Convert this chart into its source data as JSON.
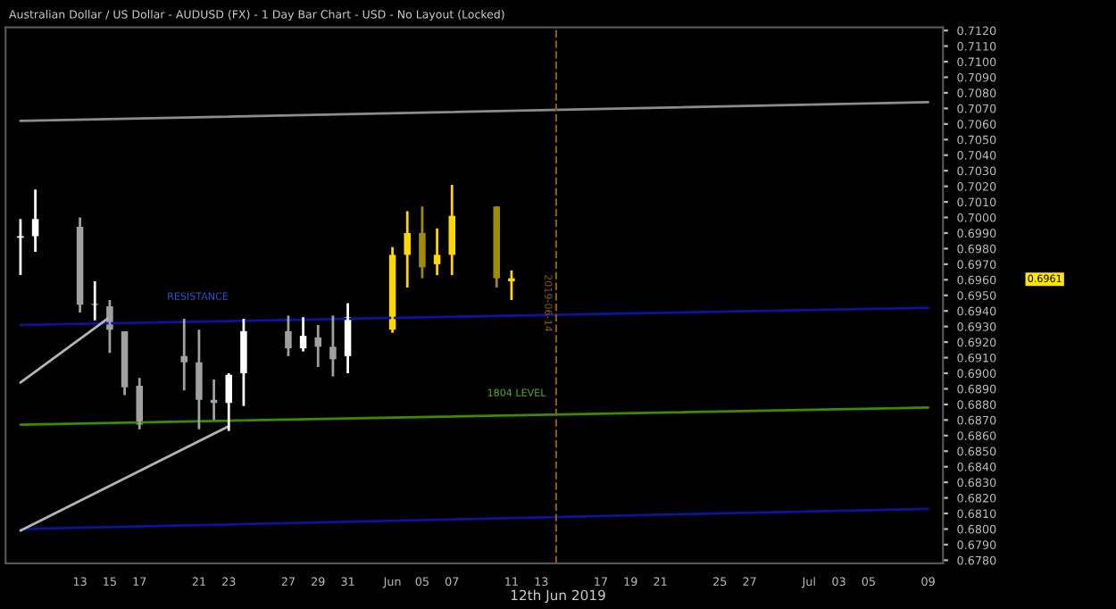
{
  "chart_data": {
    "type": "candlestick",
    "title": "Australian Dollar / US Dollar - AUDUSD (FX) - 1 Day Bar Chart - USD - No Layout (Locked)",
    "x": [
      "2019-05-09",
      "2019-05-10",
      "2019-05-13",
      "2019-05-14",
      "2019-05-15",
      "2019-05-16",
      "2019-05-17",
      "2019-05-20",
      "2019-05-21",
      "2019-05-22",
      "2019-05-23",
      "2019-05-24",
      "2019-05-27",
      "2019-05-28",
      "2019-05-29",
      "2019-05-30",
      "2019-05-31",
      "2019-06-03",
      "2019-06-04",
      "2019-06-05",
      "2019-06-06",
      "2019-06-07",
      "2019-06-10",
      "2019-06-11"
    ],
    "ohlc": [
      [
        0.6987,
        0.6999,
        0.6963,
        0.6988
      ],
      [
        0.6988,
        0.7018,
        0.6978,
        0.6999
      ],
      [
        0.6994,
        0.7,
        0.6939,
        0.6944
      ],
      [
        0.6944,
        0.6959,
        0.6934,
        0.6944
      ],
      [
        0.6943,
        0.6947,
        0.6913,
        0.6928
      ],
      [
        0.6927,
        0.6927,
        0.6886,
        0.6891
      ],
      [
        0.6892,
        0.6897,
        0.6864,
        0.6867
      ],
      [
        0.6911,
        0.6935,
        0.6889,
        0.6907
      ],
      [
        0.6907,
        0.6928,
        0.6864,
        0.6883
      ],
      [
        0.6883,
        0.6896,
        0.687,
        0.6881
      ],
      [
        0.6881,
        0.69,
        0.6863,
        0.6899
      ],
      [
        0.69,
        0.6935,
        0.6879,
        0.6927
      ],
      [
        0.6927,
        0.6937,
        0.6911,
        0.6916
      ],
      [
        0.6916,
        0.6936,
        0.6914,
        0.6924
      ],
      [
        0.6923,
        0.6931,
        0.6904,
        0.6917
      ],
      [
        0.6917,
        0.6937,
        0.6898,
        0.6909
      ],
      [
        0.6911,
        0.6945,
        0.69,
        0.6936
      ],
      [
        0.6928,
        0.6981,
        0.6926,
        0.6976
      ],
      [
        0.6976,
        0.7004,
        0.6955,
        0.699
      ],
      [
        0.699,
        0.7007,
        0.6961,
        0.6968
      ],
      [
        0.697,
        0.6993,
        0.6963,
        0.6976
      ],
      [
        0.6976,
        0.7021,
        0.6963,
        0.7001
      ],
      [
        0.7007,
        0.7007,
        0.6955,
        0.6961
      ],
      [
        0.6959,
        0.6966,
        0.6947,
        0.6961
      ]
    ],
    "colors": [
      "#ffffff",
      "#ffffff",
      "#a0a0a0",
      "#ffffff",
      "#a0a0a0",
      "#a0a0a0",
      "#a0a0a0",
      "#a0a0a0",
      "#a0a0a0",
      "#a0a0a0",
      "#ffffff",
      "#ffffff",
      "#a0a0a0",
      "#ffffff",
      "#a0a0a0",
      "#a0a0a0",
      "#ffffff",
      "#ffd700",
      "#ffd700",
      "#a08c00",
      "#ffd700",
      "#ffd700",
      "#a08c00",
      "#ffd700"
    ],
    "series": [
      {
        "type": "line",
        "color": "#8c8c8c",
        "x": [
          "2019-05-09",
          "2019-07-09"
        ],
        "values": [
          0.7062,
          0.7074
        ]
      },
      {
        "type": "line",
        "color": "#0a14a0",
        "x": [
          "2019-05-09",
          "2019-07-09"
        ],
        "values": [
          0.6931,
          0.6942
        ]
      },
      {
        "type": "line",
        "color": "#3c8c00",
        "x": [
          "2019-05-09",
          "2019-07-09"
        ],
        "values": [
          0.6867,
          0.6878
        ]
      },
      {
        "type": "line",
        "color": "#0a14a0",
        "x": [
          "2019-05-09",
          "2019-07-09"
        ],
        "values": [
          0.68,
          0.6813
        ]
      },
      {
        "type": "line",
        "color": "#b4b4b4",
        "x": [
          "2019-05-09",
          "2019-05-15"
        ],
        "values": [
          0.6894,
          0.6936
        ]
      },
      {
        "type": "line",
        "color": "#b4b4b4",
        "x": [
          "2019-05-09",
          "2019-05-23"
        ],
        "values": [
          0.6799,
          0.6866
        ]
      }
    ],
    "ref_lines": [
      {
        "axis": "x",
        "value": "2019-06-14",
        "label": "2019-06-14",
        "color": "#8c5a00",
        "line_style": "dashed"
      }
    ],
    "annotations": [
      "RESISTANCE",
      "1804 LEVEL",
      "0.6961",
      "12th Jun 2019"
    ],
    "xlim": [
      "2019-05-08",
      "2019-07-10"
    ],
    "xticks": [
      {
        "value": "2019-05-13",
        "label": "13"
      },
      {
        "value": "2019-05-15",
        "label": "15"
      },
      {
        "value": "2019-05-17",
        "label": "17"
      },
      {
        "value": "2019-05-21",
        "label": "21"
      },
      {
        "value": "2019-05-23",
        "label": "23"
      },
      {
        "value": "2019-05-27",
        "label": "27"
      },
      {
        "value": "2019-05-29",
        "label": "29"
      },
      {
        "value": "2019-05-31",
        "label": "31"
      },
      {
        "value": "2019-06-03",
        "label": "Jun"
      },
      {
        "value": "2019-06-05",
        "label": "05"
      },
      {
        "value": "2019-06-07",
        "label": "07"
      },
      {
        "value": "2019-06-11",
        "label": "11"
      },
      {
        "value": "2019-06-13",
        "label": "13"
      },
      {
        "value": "2019-06-17",
        "label": "17"
      },
      {
        "value": "2019-06-19",
        "label": "19"
      },
      {
        "value": "2019-06-21",
        "label": "21"
      },
      {
        "value": "2019-06-25",
        "label": "25"
      },
      {
        "value": "2019-06-27",
        "label": "27"
      },
      {
        "value": "2019-07-01",
        "label": "Jul"
      },
      {
        "value": "2019-07-03",
        "label": "03"
      },
      {
        "value": "2019-07-05",
        "label": "05"
      },
      {
        "value": "2019-07-09",
        "label": "09"
      }
    ],
    "ylim": [
      0.6778,
      0.7122
    ],
    "yticks": [
      {
        "value": 0.678,
        "label": "0.6780"
      },
      {
        "value": 0.679,
        "label": "0.6790"
      },
      {
        "value": 0.68,
        "label": "0.6800"
      },
      {
        "value": 0.681,
        "label": "0.6810"
      },
      {
        "value": 0.682,
        "label": "0.6820"
      },
      {
        "value": 0.683,
        "label": "0.6830"
      },
      {
        "value": 0.684,
        "label": "0.6840"
      },
      {
        "value": 0.685,
        "label": "0.6850"
      },
      {
        "value": 0.686,
        "label": "0.6860"
      },
      {
        "value": 0.687,
        "label": "0.6870"
      },
      {
        "value": 0.688,
        "label": "0.6880"
      },
      {
        "value": 0.689,
        "label": "0.6890"
      },
      {
        "value": 0.69,
        "label": "0.6900"
      },
      {
        "value": 0.691,
        "label": "0.6910"
      },
      {
        "value": 0.692,
        "label": "0.6920"
      },
      {
        "value": 0.693,
        "label": "0.6930"
      },
      {
        "value": 0.694,
        "label": "0.6940"
      },
      {
        "value": 0.695,
        "label": "0.6950"
      },
      {
        "value": 0.696,
        "label": "0.6960"
      },
      {
        "value": 0.697,
        "label": "0.6970"
      },
      {
        "value": 0.698,
        "label": "0.6980"
      },
      {
        "value": 0.699,
        "label": "0.6990"
      },
      {
        "value": 0.7,
        "label": "0.7000"
      },
      {
        "value": 0.701,
        "label": "0.7010"
      },
      {
        "value": 0.702,
        "label": "0.7020"
      },
      {
        "value": 0.703,
        "label": "0.7030"
      },
      {
        "value": 0.704,
        "label": "0.7040"
      },
      {
        "value": 0.705,
        "label": "0.7050"
      },
      {
        "value": 0.706,
        "label": "0.7060"
      },
      {
        "value": 0.707,
        "label": "0.7070"
      },
      {
        "value": 0.708,
        "label": "0.7080"
      },
      {
        "value": 0.709,
        "label": "0.7090"
      },
      {
        "value": 0.71,
        "label": "0.7100"
      },
      {
        "value": 0.711,
        "label": "0.7110"
      },
      {
        "value": 0.712,
        "label": "0.7120"
      }
    ],
    "grid": false,
    "legend": false
  }
}
